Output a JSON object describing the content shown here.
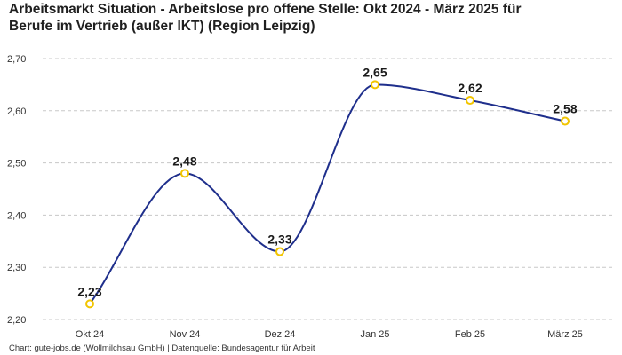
{
  "title_line1": "Arbeitsmarkt Situation - Arbeitslose pro offene Stelle: Okt 2024 - März 2025 für",
  "title_line2": "Berufe im Vertrieb (außer IKT) (Region Leipzig)",
  "footer": "Chart: gute-jobs.de (Wollmilchsau GmbH) | Datenquelle: Bundesagentur für Arbeit",
  "colors": {
    "line": "#1f2f8c",
    "marker_stroke": "#f2c500",
    "marker_fill": "#ffffff",
    "grid": "#c8c8c8"
  },
  "chart_data": {
    "type": "line",
    "title": "Arbeitsmarkt Situation - Arbeitslose pro offene Stelle: Okt 2024 - März 2025 für Berufe im Vertrieb (außer IKT) (Region Leipzig)",
    "xlabel": "",
    "ylabel": "",
    "categories": [
      "Okt 24",
      "Nov 24",
      "Dez 24",
      "Jan 25",
      "Feb 25",
      "März 25"
    ],
    "values": [
      2.23,
      2.48,
      2.33,
      2.65,
      2.62,
      2.58
    ],
    "value_labels": [
      "2,23",
      "2,48",
      "2,33",
      "2,65",
      "2,62",
      "2,58"
    ],
    "ylim": [
      2.2,
      2.7
    ],
    "yticks": [
      2.2,
      2.3,
      2.4,
      2.5,
      2.6,
      2.7
    ],
    "ytick_labels": [
      "2,20",
      "2,30",
      "2,40",
      "2,50",
      "2,60",
      "2,70"
    ],
    "grid": true,
    "legend": "none"
  }
}
